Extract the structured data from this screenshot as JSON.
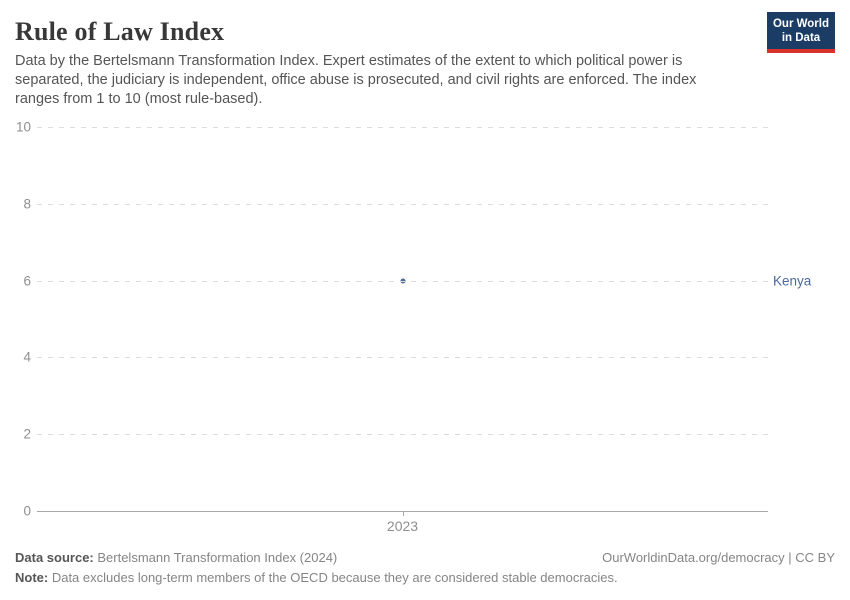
{
  "header": {
    "title": "Rule of Law Index",
    "subtitle": "Data by the Bertelsmann Transformation Index. Expert estimates of the extent to which political power is separated, the judiciary is independent, office abuse is prosecuted, and civil rights are enforced. The index ranges from 1 to 10 (most rule-based).",
    "logo": {
      "line1": "Our World",
      "line2": "in Data",
      "bg_color": "#1a3c65",
      "accent_color": "#d7332c"
    }
  },
  "chart_data": {
    "type": "scatter",
    "title": "Rule of Law Index",
    "x": [
      2023
    ],
    "series": [
      {
        "name": "Kenya",
        "values": [
          6
        ],
        "color": "#4c6a9c"
      }
    ],
    "xticks": [
      "2023"
    ],
    "yticks": [
      0,
      2,
      4,
      6,
      8,
      10
    ],
    "ylim": [
      0,
      10
    ],
    "xlabel": "",
    "ylabel": "",
    "grid": "horizontal-dashed",
    "legend_position": "right-of-point",
    "gridline_color": "#dcdcdc",
    "axis_color": "#a8a8a8",
    "tick_label_color": "#8f8f8f"
  },
  "footer": {
    "datasource_label": "Data source:",
    "datasource_value": " Bertelsmann Transformation Index (2024)",
    "attribution": "OurWorldinData.org/democracy | CC BY",
    "note_label": "Note:",
    "note_value": " Data excludes long-term members of the OECD because they are considered stable democracies."
  }
}
